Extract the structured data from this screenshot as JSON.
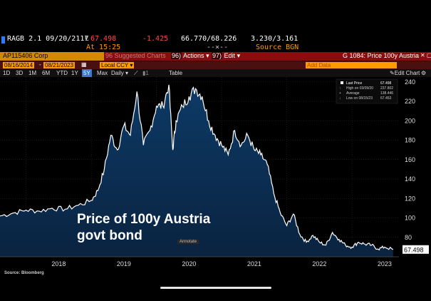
{
  "ticker": {
    "symbol": "RAGB 2.1 09/20/2117",
    "currency_mark": "€",
    "last_price": "67.498",
    "change": "-1.425",
    "bid_ask": "66.770/68.226",
    "yields": "3.230/3.161",
    "time": "At 15:25",
    "dash": "--×--",
    "source": "Source BGN"
  },
  "security_bar": {
    "title": "AP115406 Corp",
    "menu_1_num": "96",
    "menu_1": "Suggested Charts",
    "menu_2_num": "96)",
    "menu_2": "Actions",
    "menu_3_num": "97)",
    "menu_3": "Edit",
    "chart_title": "G 1084: Price 100y Austria",
    "window_controls": "✕ ▢"
  },
  "date_row": {
    "start": "08/16/2014",
    "end": "08/21/2023",
    "ccy": "Local CCY",
    "add_data": "Add Data"
  },
  "toolbar": {
    "periods": [
      "1D",
      "3D",
      "1M",
      "6M",
      "YTD",
      "1Y",
      "5Y",
      "Max"
    ],
    "active_period": "5Y",
    "frequency": "Daily",
    "view_1": "1",
    "table": "Table",
    "edit_chart": "Edit Chart"
  },
  "legend": {
    "last_price_label": "Last Price",
    "last_price_value": "67.498",
    "high_label": "High on 03/09/20",
    "high_value": "237.802",
    "average_label": "Average",
    "average_value": "138.446",
    "low_label": "Low on 08/15/23",
    "low_value": "67.453"
  },
  "overlay": {
    "line1": "Price of 100y Austria",
    "line2": "govt bond"
  },
  "annotate_label": "Annotate",
  "source_note": "Source: Bloomberg",
  "colors": {
    "line": "#ffffff",
    "fill_top": "#0d3a66",
    "fill_bottom": "#0a2340",
    "accent_orange": "#ff9a00",
    "red_band": "#8a0d0d",
    "active_blue": "#3d78d0"
  },
  "chart_data": {
    "type": "area",
    "title": "",
    "xlabel": "",
    "ylabel": "",
    "ylim": [
      60,
      245
    ],
    "y_ticks": [
      80,
      100,
      120,
      140,
      160,
      180,
      200,
      220,
      240
    ],
    "x_ticks": [
      "2018",
      "2019",
      "2020",
      "2021",
      "2022",
      "2023"
    ],
    "last_value_label": "67.498",
    "grid": true,
    "x": [
      2017.6,
      2017.8,
      2018.0,
      2018.2,
      2018.4,
      2018.6,
      2018.8,
      2019.0,
      2019.1,
      2019.2,
      2019.3,
      2019.4,
      2019.5,
      2019.6,
      2019.7,
      2019.8,
      2019.9,
      2020.0,
      2020.1,
      2020.19,
      2020.25,
      2020.3,
      2020.4,
      2020.5,
      2020.6,
      2020.7,
      2020.8,
      2020.9,
      2021.0,
      2021.1,
      2021.2,
      2021.3,
      2021.4,
      2021.5,
      2021.6,
      2021.7,
      2021.8,
      2021.9,
      2022.0,
      2022.1,
      2022.2,
      2022.3,
      2022.4,
      2022.5,
      2022.6,
      2022.7,
      2022.8,
      2022.9,
      2023.0,
      2023.1,
      2023.2,
      2023.3,
      2023.4,
      2023.5,
      2023.63
    ],
    "series": [
      {
        "values": [
          102,
          105,
          108,
          107,
          110,
          109,
          113,
          118,
          128,
          150,
          185,
          170,
          195,
          185,
          230,
          175,
          190,
          215,
          215,
          237,
          170,
          200,
          215,
          225,
          233,
          225,
          200,
          185,
          175,
          165,
          190,
          175,
          185,
          170,
          165,
          155,
          125,
          105,
          92,
          104,
          83,
          75,
          82,
          75,
          72,
          85,
          78,
          72,
          70,
          75,
          73,
          72,
          68,
          70,
          67.5
        ]
      }
    ]
  }
}
